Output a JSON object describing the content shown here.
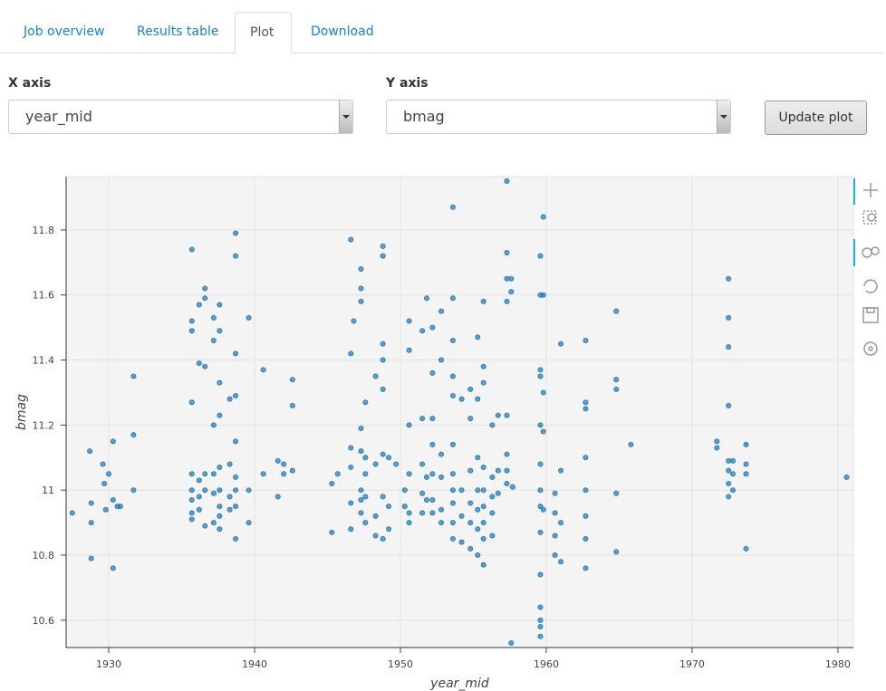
{
  "tabs": [
    "Job overview",
    "Results table",
    "Plot",
    "Download"
  ],
  "active_tab": 2,
  "controls": {
    "x_axis": {
      "label": "X axis",
      "value": "year_mid"
    },
    "y_axis": {
      "label": "Y axis",
      "value": "bmag"
    },
    "button": "Update plot"
  },
  "chart_data": {
    "type": "scatter",
    "x_label": "year_mid",
    "y_label": "bmag",
    "color": "#1f77b4",
    "grid": true,
    "xlim": [
      1927.08,
      1981.06
    ],
    "ylim": [
      10.516,
      11.964
    ],
    "xticks": [
      1930,
      1940,
      1950,
      1960,
      1970,
      1980
    ],
    "yticks": [
      10.6,
      10.8,
      11,
      11.2,
      11.4,
      11.6,
      11.8
    ],
    "x": [
      1927.5,
      1928.7,
      1928.8,
      1928.8,
      1928.8,
      1929.6,
      1929.7,
      1929.8,
      1930,
      1930.3,
      1930.3,
      1930.3,
      1930.6,
      1930.8,
      1931.7,
      1931.7,
      1931.7,
      1935.7,
      1935.7,
      1935.7,
      1935.7,
      1935.7,
      1935.7,
      1935.7,
      1935.7,
      1935.7,
      1936.2,
      1936.2,
      1936.2,
      1936.2,
      1936.2,
      1936.6,
      1936.6,
      1936.6,
      1936.6,
      1936.6,
      1936.6,
      1937.2,
      1937.2,
      1937.2,
      1937.2,
      1937.2,
      1937.2,
      1937.6,
      1937.6,
      1937.6,
      1937.6,
      1937.6,
      1937.6,
      1937.6,
      1937.6,
      1937.6,
      1938.3,
      1938.3,
      1938.3,
      1938.3,
      1938.7,
      1938.7,
      1938.7,
      1938.7,
      1938.7,
      1938.7,
      1938.7,
      1938.7,
      1938.7,
      1939.6,
      1939.6,
      1939.6,
      1940.6,
      1940.6,
      1941.6,
      1941.6,
      1942.0,
      1942.0,
      1942.6,
      1942.6,
      1942.6,
      1945.3,
      1945.3,
      1945.7,
      1946.6,
      1946.6,
      1946.6,
      1946.6,
      1946.6,
      1946.6,
      1946.8,
      1947.3,
      1947.3,
      1947.3,
      1947.3,
      1947.3,
      1947.3,
      1947.3,
      1947.3,
      1947.6,
      1947.6,
      1947.6,
      1947.6,
      1947.6,
      1948.3,
      1948.3,
      1948.3,
      1948.3,
      1948.8,
      1948.8,
      1948.8,
      1948.8,
      1948.8,
      1948.8,
      1948.8,
      1948.8,
      1949.2,
      1949.2,
      1949.2,
      1949.7,
      1950.3,
      1950.3,
      1950.6,
      1950.6,
      1950.6,
      1950.6,
      1950.6,
      1950.6,
      1951.5,
      1951.5,
      1951.5,
      1951.5,
      1951.5,
      1951.8,
      1951.8,
      1951.8,
      1952.2,
      1952.2,
      1952.2,
      1952.2,
      1952.2,
      1952.2,
      1952.2,
      1952.8,
      1952.8,
      1952.8,
      1952.8,
      1952.8,
      1952.8,
      1953.6,
      1953.6,
      1953.6,
      1953.6,
      1953.6,
      1953.6,
      1953.6,
      1953.6,
      1953.6,
      1953.6,
      1953.6,
      1954.2,
      1954.2,
      1954.2,
      1954.2,
      1954.8,
      1954.8,
      1954.8,
      1954.8,
      1954.8,
      1954.8,
      1955.3,
      1955.3,
      1955.3,
      1955.3,
      1955.3,
      1955.3,
      1955.3,
      1955.7,
      1955.7,
      1955.7,
      1955.7,
      1955.7,
      1955.7,
      1955.7,
      1955.7,
      1955.7,
      1956.3,
      1956.3,
      1956.3,
      1956.3,
      1956.3,
      1956.7,
      1956.7,
      1956.7,
      1957.3,
      1957.3,
      1957.3,
      1957.3,
      1957.3,
      1957.3,
      1957.3,
      1957.3,
      1957.6,
      1957.6,
      1957.6,
      1957.7,
      1959.6,
      1959.6,
      1959.6,
      1959.6,
      1959.6,
      1959.6,
      1959.6,
      1959.6,
      1959.6,
      1959.6,
      1959.6,
      1959.6,
      1959.6,
      1959.6,
      1959.8,
      1959.8,
      1959.8,
      1959.8,
      1959.8,
      1960.6,
      1960.6,
      1960.6,
      1960.6,
      1961.0,
      1961.0,
      1961.0,
      1961.0,
      1962.7,
      1962.7,
      1962.7,
      1962.7,
      1962.7,
      1962.7,
      1962.7,
      1962.7,
      1964.8,
      1964.8,
      1964.8,
      1964.8,
      1964.8,
      1965.8,
      1971.7,
      1971.7,
      1972.5,
      1972.5,
      1972.5,
      1972.5,
      1972.5,
      1972.5,
      1972.5,
      1972.5,
      1972.8,
      1972.8,
      1972.8,
      1973.7,
      1973.7,
      1973.7,
      1973.7,
      1980.6
    ],
    "values": [
      10.93,
      11.12,
      10.96,
      10.9,
      10.79,
      11.08,
      11.02,
      10.94,
      11.05,
      11.15,
      10.97,
      10.76,
      10.95,
      10.95,
      11.35,
      11.17,
      11.0,
      11.74,
      11.52,
      11.49,
      11.27,
      11.05,
      11.0,
      10.97,
      10.93,
      10.91,
      11.57,
      11.39,
      11.03,
      10.98,
      10.94,
      11.62,
      11.59,
      11.38,
      11.05,
      11.0,
      10.89,
      11.53,
      11.46,
      11.2,
      11.05,
      10.99,
      10.9,
      11.57,
      11.49,
      11.33,
      11.23,
      11.07,
      11.0,
      10.95,
      10.92,
      10.88,
      11.28,
      11.08,
      10.98,
      10.94,
      11.79,
      11.72,
      11.42,
      11.29,
      11.15,
      11.04,
      11.0,
      10.95,
      10.85,
      11.53,
      11.0,
      10.9,
      11.37,
      11.05,
      11.09,
      10.98,
      11.08,
      11.05,
      11.34,
      11.26,
      11.06,
      11.02,
      10.87,
      11.05,
      11.77,
      11.42,
      11.13,
      11.07,
      10.96,
      10.88,
      11.52,
      11.68,
      11.62,
      11.58,
      11.19,
      11.12,
      11.0,
      10.97,
      10.93,
      11.27,
      11.1,
      11.05,
      10.98,
      10.9,
      11.35,
      11.08,
      10.92,
      10.86,
      11.75,
      11.72,
      11.45,
      11.4,
      11.31,
      11.11,
      10.98,
      10.85,
      11.1,
      10.95,
      10.88,
      11.08,
      11.0,
      10.95,
      11.52,
      11.43,
      11.2,
      11.05,
      10.93,
      10.9,
      11.49,
      11.22,
      11.08,
      10.99,
      10.93,
      11.59,
      11.04,
      10.97,
      11.5,
      11.36,
      11.22,
      11.14,
      11.05,
      10.97,
      10.93,
      11.55,
      11.4,
      11.11,
      11.04,
      10.94,
      10.9,
      11.87,
      11.59,
      11.46,
      11.35,
      11.29,
      11.14,
      11.05,
      11.0,
      10.96,
      10.9,
      10.85,
      11.28,
      11.0,
      10.92,
      10.84,
      11.31,
      11.22,
      11.06,
      10.96,
      10.9,
      10.82,
      11.47,
      11.28,
      11.1,
      11.0,
      10.94,
      10.88,
      10.8,
      11.58,
      11.38,
      11.33,
      11.07,
      11.0,
      10.95,
      10.9,
      10.85,
      10.77,
      11.2,
      11.04,
      10.98,
      10.93,
      10.86,
      11.23,
      11.06,
      10.99,
      11.95,
      11.73,
      11.65,
      11.58,
      11.23,
      11.11,
      11.06,
      11.02,
      11.65,
      11.61,
      10.53,
      11.01,
      11.72,
      11.6,
      11.37,
      11.35,
      11.2,
      11.08,
      11.0,
      10.95,
      10.87,
      10.74,
      10.64,
      10.6,
      10.58,
      10.55,
      11.84,
      11.6,
      11.3,
      11.18,
      10.94,
      10.99,
      10.93,
      10.86,
      10.8,
      11.45,
      11.06,
      10.9,
      10.78,
      11.46,
      11.27,
      11.25,
      11.1,
      11.0,
      10.92,
      10.85,
      10.76,
      11.55,
      11.34,
      11.31,
      10.99,
      10.81,
      11.14,
      11.15,
      11.13,
      11.65,
      11.53,
      11.44,
      11.26,
      11.09,
      11.06,
      11.02,
      10.98,
      11.09,
      11.05,
      11.0,
      11.14,
      11.08,
      11.05,
      10.82,
      11.04
    ]
  }
}
